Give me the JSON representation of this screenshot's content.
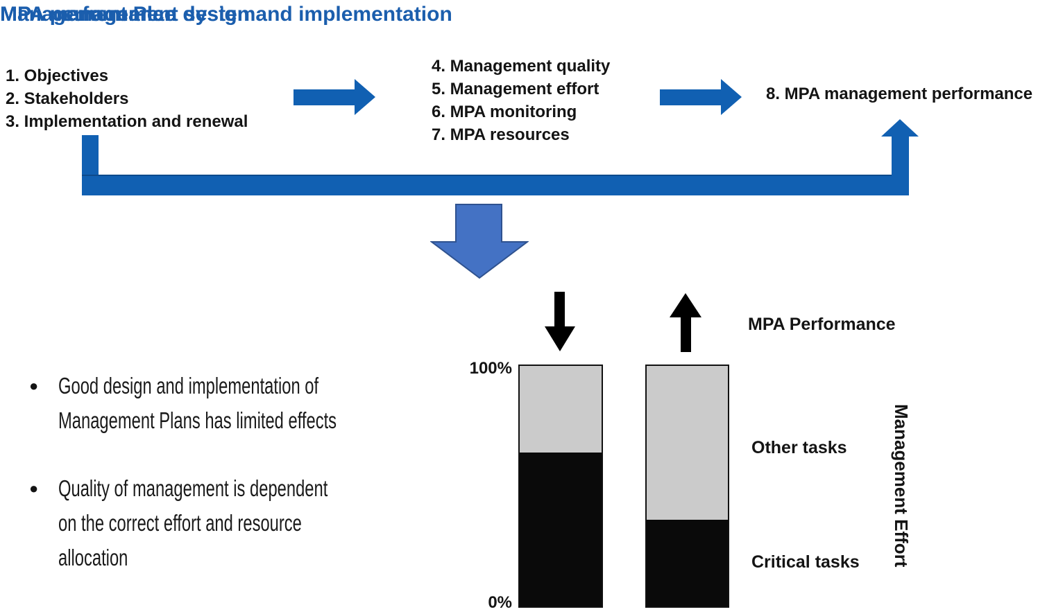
{
  "colors": {
    "background": "#ffffff",
    "heading_blue": "#1b5ead",
    "arrow_blue": "#1160b2",
    "loop_blue": "#1160b2",
    "big_arrow_fill": "#4472c4",
    "big_arrow_border": "#2f528f",
    "bar_gray": "#cbcbcb",
    "bar_black": "#0a0a0a"
  },
  "flow": {
    "stage1": {
      "title": "Management Plan design and implementation",
      "items": [
        "1. Objectives",
        "2. Stakeholders",
        "3. Implementation and renewal"
      ]
    },
    "stage2": {
      "title": "MPA management system",
      "items": [
        "4. Management quality",
        "5. Management effort",
        "6. MPA monitoring",
        "7. MPA resources"
      ]
    },
    "stage3": {
      "title": "MPA performance",
      "items": [
        "8. MPA management performance"
      ]
    }
  },
  "bullets": [
    "Good design and implementation of Management Plans has limited effects",
    "Quality of management is dependent on the correct effort and resource allocation"
  ],
  "chart_data": {
    "type": "bar",
    "title": "",
    "axis": {
      "top_label": "100%",
      "bottom_label": "0%"
    },
    "performance_label": "MPA Performance",
    "effort_axis_label": "Management Effort",
    "segment_labels": {
      "other": "Other tasks",
      "critical": "Critical tasks"
    },
    "categories": [
      "low MPA performance (down arrow)",
      "high MPA performance (up arrow)"
    ],
    "series": [
      {
        "name": "Critical tasks",
        "color": "#0a0a0a",
        "values": [
          64,
          36
        ]
      },
      {
        "name": "Other tasks",
        "color": "#cbcbcb",
        "values": [
          36,
          64
        ]
      }
    ],
    "bars": [
      {
        "trend": "down",
        "critical_pct": 64,
        "other_pct": 36
      },
      {
        "trend": "up",
        "critical_pct": 36,
        "other_pct": 64
      }
    ],
    "ylim": [
      0,
      100
    ]
  }
}
